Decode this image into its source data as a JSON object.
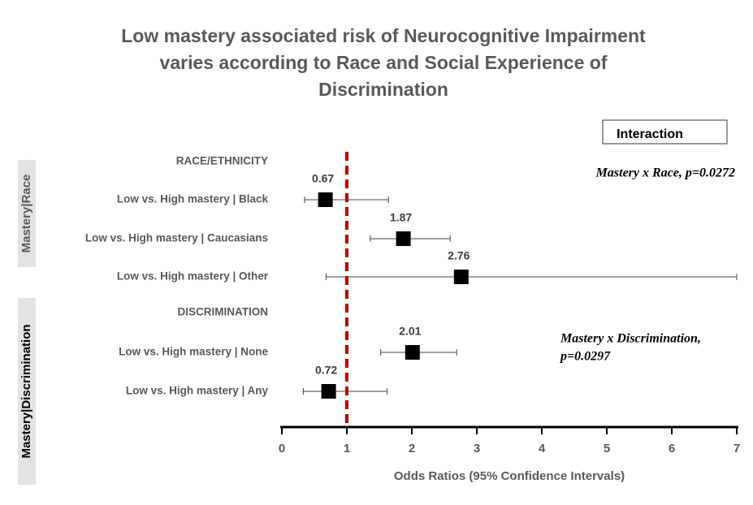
{
  "chart_data": {
    "type": "forest",
    "title": [
      "Low mastery associated risk of Neurocognitive Impairment",
      "varies according to Race and Social Experience of",
      "Discrimination"
    ],
    "legend_title": "Interaction",
    "groups": [
      {
        "header": "RACE/ETHNICITY",
        "side_label": "Mastery|Race",
        "annotation": [
          "Mastery x Race, p=0.0272"
        ],
        "categories": [
          "Low vs. High mastery | Black",
          "Low vs. High mastery | Caucasians",
          "Low vs. High mastery | Other"
        ],
        "values": [
          0.67,
          1.87,
          2.76
        ],
        "ci_low": [
          0.35,
          1.36,
          0.68
        ],
        "ci_high": [
          1.64,
          2.59,
          7
        ]
      },
      {
        "header": "DISCRIMINATION",
        "side_label": "Mastery|Discrimination",
        "annotation": [
          "Mastery x Discrimination,",
          "p=0.0297"
        ],
        "categories": [
          "Low vs. High mastery | None",
          "Low vs. High mastery | Any"
        ],
        "values": [
          2.01,
          0.72
        ],
        "ci_low": [
          1.52,
          0.33
        ],
        "ci_high": [
          2.69,
          1.62
        ]
      }
    ],
    "xlabel": "Odds Ratios (95% Confidence Intervals)",
    "xlim": [
      0,
      7
    ],
    "xticks": [
      0,
      1,
      2,
      3,
      4,
      5,
      6,
      7
    ],
    "reference_line": 1,
    "reference_color": "#c00000",
    "color": "#000000"
  }
}
